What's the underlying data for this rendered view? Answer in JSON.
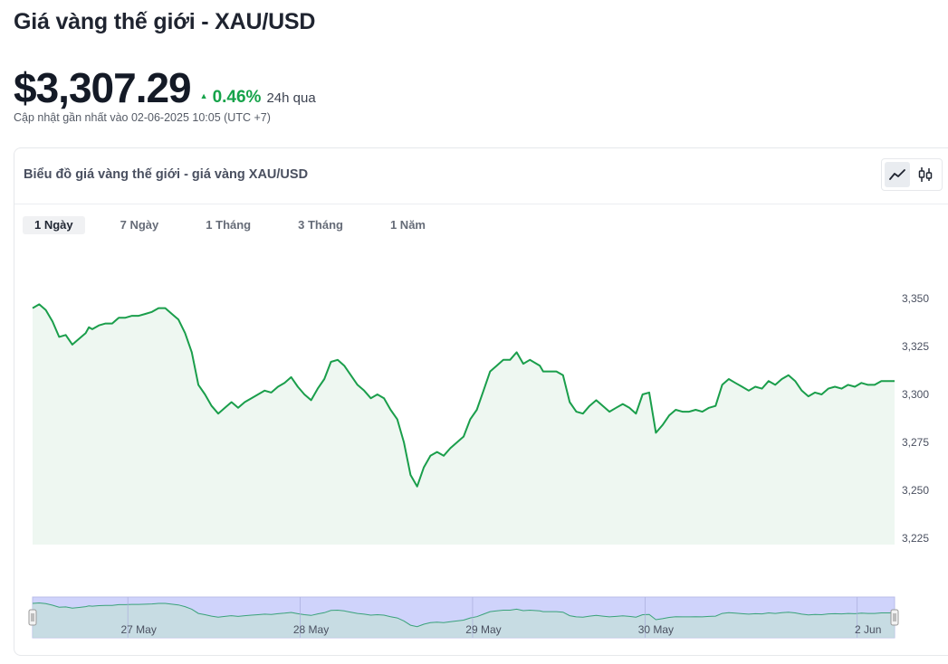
{
  "header": {
    "title": "Giá vàng thế giới - XAU/USD",
    "price": "$3,307.29",
    "change_percent": "0.46%",
    "change_period": "24h qua",
    "updated": "Cập nhật gần nhất vào 02-06-2025 10:05 (UTC +7)"
  },
  "card": {
    "title": "Biểu đồ giá vàng thế giới - giá vàng XAU/USD",
    "chart_modes": [
      "line-chart-icon",
      "candlestick-icon"
    ],
    "active_mode": 0
  },
  "tabs": [
    {
      "label": "1 Ngày",
      "active": true
    },
    {
      "label": "7 Ngày",
      "active": false
    },
    {
      "label": "1 Tháng",
      "active": false
    },
    {
      "label": "3 Tháng",
      "active": false
    },
    {
      "label": "1 Năm",
      "active": false
    }
  ],
  "colors": {
    "line": "#1a9e4b",
    "area": "#eef7f1",
    "navigator_fill": "#cfd3fb",
    "navigator_line": "#3aa27a",
    "accent_up": "#16a34a"
  },
  "chart_data": {
    "type": "area",
    "title": "",
    "xlabel": "",
    "ylabel": "",
    "ylim": [
      3222,
      3356
    ],
    "y_ticks": [
      "3,350",
      "3,325",
      "3,300",
      "3,275",
      "3,250",
      "3,225"
    ],
    "y_tick_values": [
      3350,
      3325,
      3300,
      3275,
      3250,
      3225
    ],
    "x_range_hours": [
      0,
      130
    ],
    "series": [
      {
        "x": [
          0,
          1,
          2,
          3,
          4,
          5,
          6,
          7,
          8,
          8.5,
          9,
          10,
          11,
          12,
          13,
          14,
          15,
          16,
          17,
          18,
          19,
          20,
          21,
          22,
          23,
          24,
          25,
          26,
          27,
          28,
          29,
          30,
          31,
          32,
          33,
          34,
          35,
          36,
          37,
          38,
          39,
          40,
          41,
          42,
          43,
          44,
          45,
          46,
          47,
          48,
          49,
          50,
          51,
          52,
          53,
          54,
          55,
          56,
          57,
          58,
          59,
          60,
          61,
          62,
          63,
          64,
          65,
          66,
          67,
          68,
          69,
          70,
          71,
          72,
          73,
          74,
          75,
          76,
          76.5,
          77,
          78,
          79,
          80,
          81,
          82,
          83,
          84,
          85,
          86,
          87,
          88,
          89,
          90,
          91,
          92,
          93,
          94,
          95,
          96,
          97,
          98,
          99,
          100,
          101,
          102,
          103,
          104,
          105,
          106,
          107,
          108,
          109,
          110,
          111,
          112,
          113,
          114,
          115,
          116,
          117,
          118,
          119,
          120,
          121,
          122,
          123,
          124,
          125,
          126,
          127,
          128,
          129,
          130
        ],
        "values": [
          3345,
          3347,
          3344,
          3338,
          3330,
          3331,
          3326,
          3329,
          3332,
          3335,
          3334,
          3336,
          3337,
          3337,
          3340,
          3340,
          3341,
          3341,
          3342,
          3343,
          3345,
          3345,
          3342,
          3339,
          3332,
          3322,
          3305,
          3300,
          3294,
          3290,
          3293,
          3296,
          3293,
          3296,
          3298,
          3300,
          3302,
          3301,
          3304,
          3306,
          3309,
          3304,
          3300,
          3297,
          3303,
          3308,
          3317,
          3318,
          3315,
          3310,
          3305,
          3302,
          3298,
          3300,
          3298,
          3292,
          3287,
          3275,
          3258,
          3252,
          3262,
          3268,
          3270,
          3268,
          3272,
          3275,
          3278,
          3287,
          3292,
          3302,
          3312,
          3315,
          3318,
          3318,
          3322,
          3316,
          3318,
          3316,
          3315,
          3312,
          3312,
          3312,
          3310,
          3296,
          3291,
          3290,
          3294,
          3297,
          3294,
          3291,
          3293,
          3295,
          3293,
          3290,
          3300,
          3301,
          3280,
          3284,
          3289,
          3292,
          3291,
          3291,
          3292,
          3291,
          3293,
          3294,
          3305,
          3308,
          3306,
          3304,
          3302,
          3304,
          3303,
          3307,
          3305,
          3308,
          3310,
          3307,
          3302,
          3299,
          3301,
          3300,
          3303,
          3304,
          3303,
          3305,
          3304,
          3306,
          3305,
          3305,
          3307,
          3307,
          3307
        ]
      }
    ],
    "navigator": {
      "labels": [
        "27 May",
        "28 May",
        "29 May",
        "30 May",
        "2 Jun"
      ],
      "label_positions_hours": [
        16,
        42,
        68,
        94,
        126
      ]
    }
  }
}
